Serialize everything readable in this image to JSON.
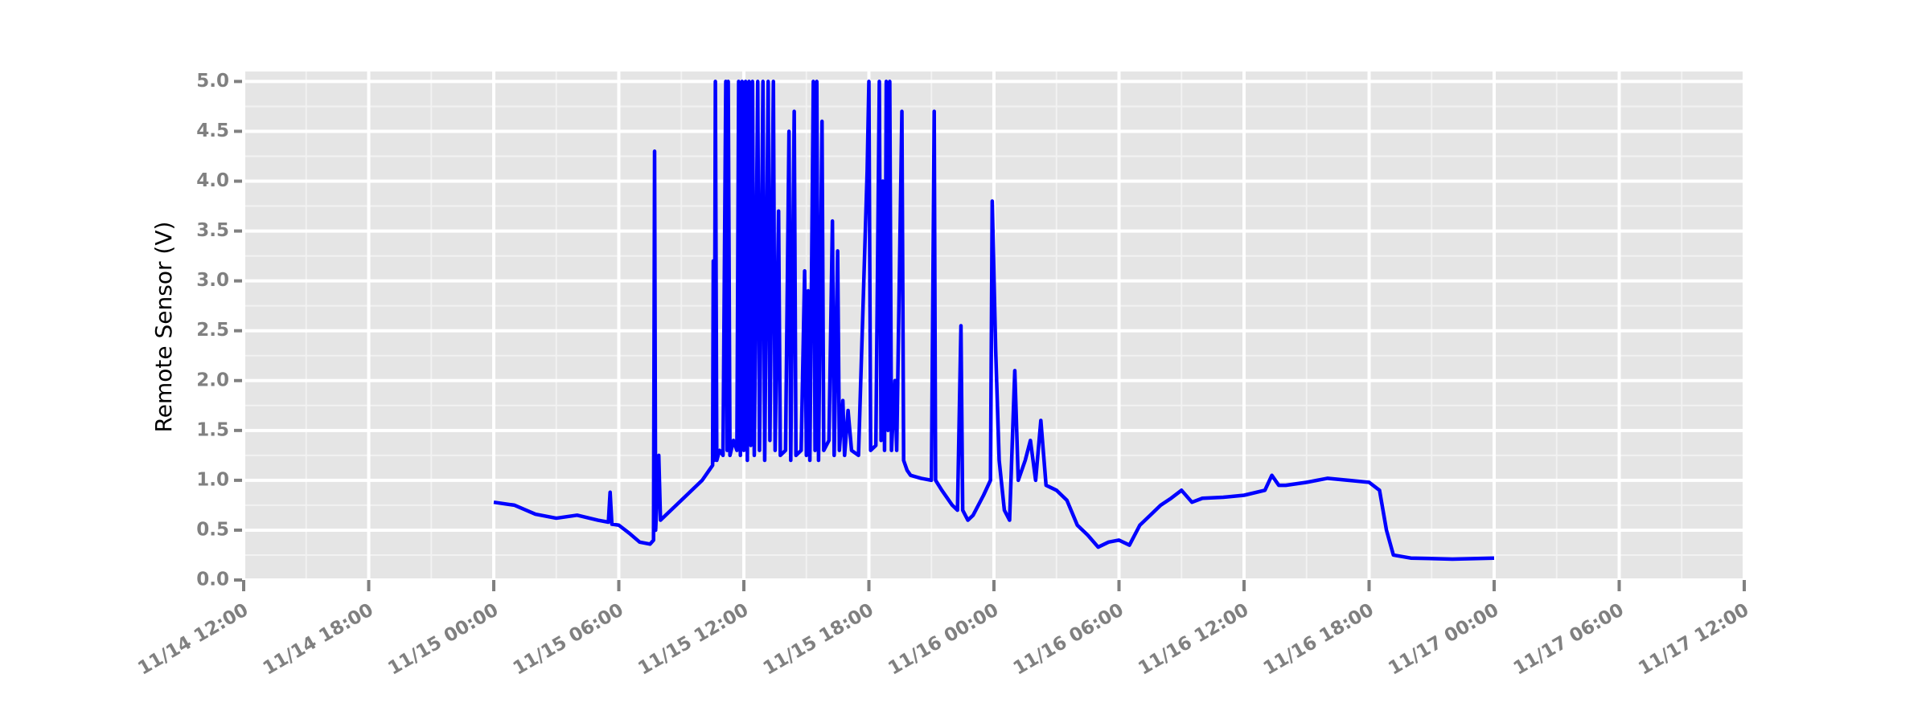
{
  "chart_data": {
    "type": "line",
    "y_label": "Remote Sensor (V)",
    "xlim": [
      "11/14 12:00",
      "11/17 12:00"
    ],
    "xticks": [
      "11/14 12:00",
      "11/14 18:00",
      "11/15 00:00",
      "11/15 06:00",
      "11/15 12:00",
      "11/15 18:00",
      "11/16 00:00",
      "11/16 06:00",
      "11/16 12:00",
      "11/16 18:00",
      "11/17 00:00",
      "11/17 06:00",
      "11/17 12:00"
    ],
    "ylim": [
      0,
      5.1
    ],
    "yticks": [
      {
        "value": 0,
        "label": "0.0"
      },
      {
        "value": 0.5,
        "label": "0.5"
      },
      {
        "value": 1,
        "label": "1.0"
      },
      {
        "value": 1.5,
        "label": "1.5"
      },
      {
        "value": 2,
        "label": "2.0"
      },
      {
        "value": 2.5,
        "label": "2.5"
      },
      {
        "value": 3,
        "label": "3.0"
      },
      {
        "value": 3.5,
        "label": "3.5"
      },
      {
        "value": 4,
        "label": "4.0"
      },
      {
        "value": 4.5,
        "label": "4.5"
      },
      {
        "value": 5,
        "label": "5.0"
      }
    ],
    "grid": true,
    "minor_grid": true,
    "series": [
      {
        "color": "#0000ff",
        "x": [
          "11/15 00:00",
          "11/15 01:00",
          "11/15 02:00",
          "11/15 03:00",
          "11/15 04:00",
          "11/15 05:00",
          "11/15 05:30",
          "11/15 05:35",
          "11/15 05:40",
          "11/15 06:00",
          "11/15 06:30",
          "11/15 07:00",
          "11/15 07:30",
          "11/15 07:40",
          "11/15 07:43",
          "11/15 07:46",
          "11/15 07:55",
          "11/15 08:00",
          "11/15 08:30",
          "11/15 09:00",
          "11/15 10:00",
          "11/15 10:20",
          "11/15 10:30",
          "11/15 10:32",
          "11/15 10:35",
          "11/15 10:38",
          "11/15 10:42",
          "11/15 10:50",
          "11/15 11:00",
          "11/15 11:08",
          "11/15 11:12",
          "11/15 11:15",
          "11/15 11:20",
          "11/15 11:30",
          "11/15 11:40",
          "11/15 11:45",
          "11/15 11:50",
          "11/15 11:55",
          "11/15 12:00",
          "11/15 12:05",
          "11/15 12:10",
          "11/15 12:15",
          "11/15 12:20",
          "11/15 12:25",
          "11/15 12:30",
          "11/15 12:40",
          "11/15 12:45",
          "11/15 12:55",
          "11/15 13:00",
          "11/15 13:10",
          "11/15 13:15",
          "11/15 13:25",
          "11/15 13:30",
          "11/15 13:40",
          "11/15 13:45",
          "11/15 14:00",
          "11/15 14:10",
          "11/15 14:15",
          "11/15 14:25",
          "11/15 14:30",
          "11/15 14:45",
          "11/15 14:55",
          "11/15 15:00",
          "11/15 15:05",
          "11/15 15:10",
          "11/15 15:20",
          "11/15 15:25",
          "11/15 15:30",
          "11/15 15:35",
          "11/15 15:45",
          "11/15 15:50",
          "11/15 16:05",
          "11/15 16:15",
          "11/15 16:20",
          "11/15 16:30",
          "11/15 16:35",
          "11/15 16:45",
          "11/15 16:50",
          "11/15 17:00",
          "11/15 17:10",
          "11/15 17:30",
          "11/15 17:55",
          "11/15 18:00",
          "11/15 18:05",
          "11/15 18:20",
          "11/15 18:30",
          "11/15 18:35",
          "11/15 18:40",
          "11/15 18:45",
          "11/15 18:50",
          "11/15 18:55",
          "11/15 19:00",
          "11/15 19:05",
          "11/15 19:15",
          "11/15 19:20",
          "11/15 19:35",
          "11/15 19:40",
          "11/15 19:50",
          "11/15 20:00",
          "11/15 20:30",
          "11/15 21:00",
          "11/15 21:08",
          "11/15 21:12",
          "11/15 21:30",
          "11/15 22:00",
          "11/15 22:15",
          "11/15 22:25",
          "11/15 22:30",
          "11/15 22:45",
          "11/15 23:00",
          "11/15 23:30",
          "11/15 23:50",
          "11/15 23:55",
          "11/16 00:05",
          "11/16 00:15",
          "11/16 00:30",
          "11/16 00:45",
          "11/16 01:00",
          "11/16 01:10",
          "11/16 01:30",
          "11/16 01:45",
          "11/16 02:00",
          "11/16 02:15",
          "11/16 02:30",
          "11/16 03:00",
          "11/16 03:30",
          "11/16 04:00",
          "11/16 04:30",
          "11/16 05:00",
          "11/16 05:30",
          "11/16 06:00",
          "11/16 06:30",
          "11/16 07:00",
          "11/16 07:30",
          "11/16 08:00",
          "11/16 08:30",
          "11/16 09:00",
          "11/16 09:30",
          "11/16 10:00",
          "11/16 11:00",
          "11/16 12:00",
          "11/16 13:00",
          "11/16 13:20",
          "11/16 13:40",
          "11/16 14:00",
          "11/16 15:00",
          "11/16 16:00",
          "11/16 17:00",
          "11/16 18:00",
          "11/16 18:30",
          "11/16 18:50",
          "11/16 19:10",
          "11/16 20:00",
          "11/16 22:00",
          "11/17 00:00"
        ],
        "values": [
          0.78,
          0.75,
          0.66,
          0.62,
          0.65,
          0.6,
          0.58,
          0.88,
          0.56,
          0.55,
          0.47,
          0.38,
          0.36,
          0.4,
          4.3,
          0.5,
          1.25,
          0.6,
          0.7,
          0.8,
          1.0,
          1.1,
          1.15,
          3.2,
          1.2,
          5.0,
          1.2,
          1.3,
          1.25,
          5.0,
          1.3,
          5.0,
          1.25,
          1.4,
          1.3,
          5.0,
          1.25,
          5.0,
          1.3,
          5.0,
          1.2,
          5.0,
          1.35,
          5.0,
          1.25,
          5.0,
          1.3,
          5.0,
          1.2,
          5.0,
          1.4,
          5.0,
          1.3,
          3.7,
          1.25,
          1.3,
          4.5,
          1.2,
          4.7,
          1.25,
          1.3,
          3.1,
          1.25,
          2.9,
          1.2,
          5.0,
          1.3,
          5.0,
          1.2,
          4.6,
          1.3,
          1.4,
          3.6,
          1.25,
          3.3,
          1.3,
          1.8,
          1.25,
          1.7,
          1.3,
          1.25,
          4.1,
          5.0,
          1.3,
          1.35,
          5.0,
          1.4,
          4.0,
          1.3,
          5.0,
          1.5,
          5.0,
          1.3,
          2.0,
          1.3,
          4.7,
          1.2,
          1.1,
          1.05,
          1.02,
          1.0,
          4.7,
          1.0,
          0.9,
          0.75,
          0.7,
          2.55,
          0.7,
          0.6,
          0.65,
          0.85,
          1.0,
          3.8,
          2.3,
          1.2,
          0.7,
          0.6,
          2.1,
          1.0,
          1.2,
          1.4,
          1.0,
          1.6,
          0.95,
          0.9,
          0.8,
          0.55,
          0.45,
          0.33,
          0.38,
          0.4,
          0.35,
          0.55,
          0.65,
          0.75,
          0.82,
          0.9,
          0.78,
          0.82,
          0.83,
          0.85,
          0.9,
          1.05,
          0.95,
          0.95,
          0.98,
          1.02,
          1.0,
          0.98,
          0.9,
          0.5,
          0.25,
          0.22,
          0.21,
          0.22
        ]
      }
    ]
  }
}
